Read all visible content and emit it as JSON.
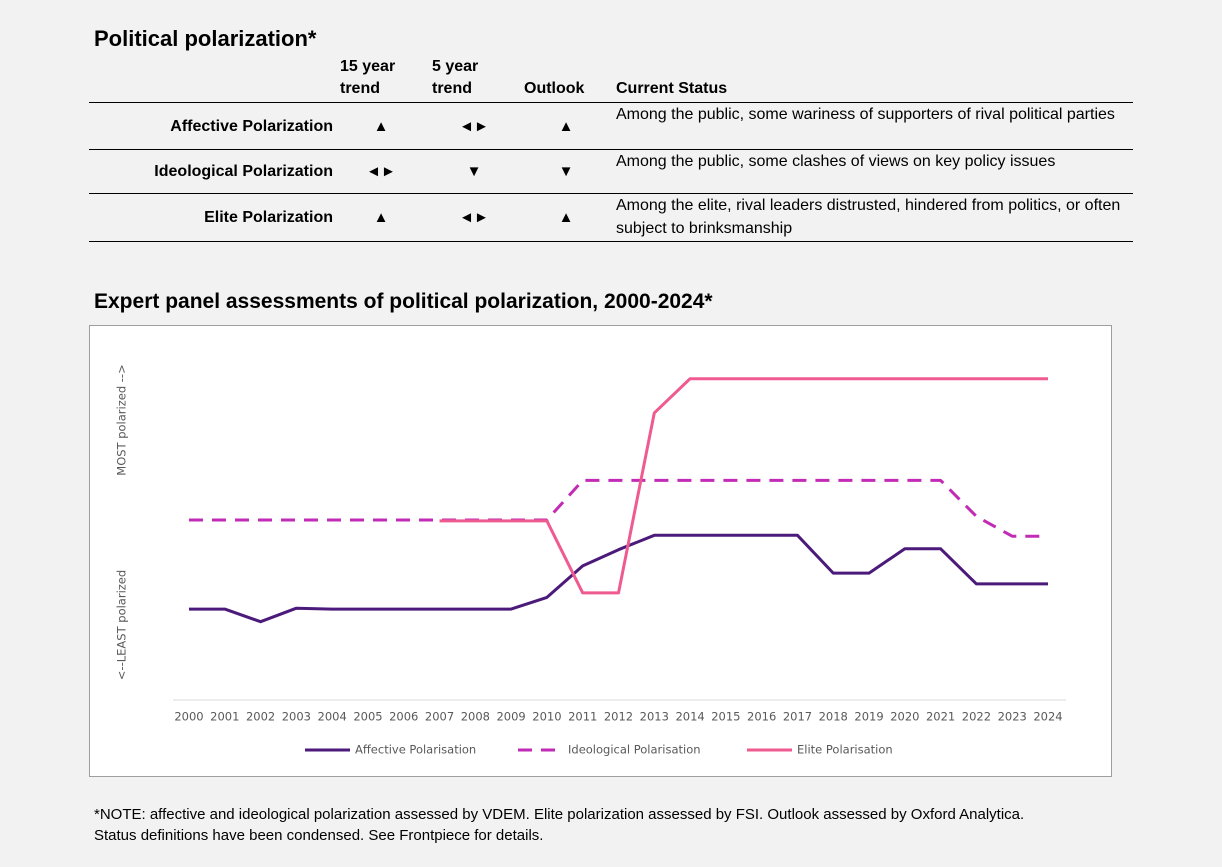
{
  "header": {
    "title": "Political polarization*"
  },
  "table": {
    "columns": [
      "15 year trend",
      "5 year trend",
      "Outlook",
      "Current Status"
    ],
    "rows": [
      {
        "label": "Affective Polarization",
        "cells": [
          "▲",
          "◄►",
          "▲",
          "Among the public, some wariness of supporters of rival political parties"
        ]
      },
      {
        "label": "Ideological Polarization",
        "cells": [
          "◄►",
          "▼",
          "▼",
          "Among the public, some clashes of views on key policy issues"
        ]
      },
      {
        "label": "Elite Polarization",
        "cells": [
          "▲",
          "◄►",
          "▲",
          "Among the elite, rival leaders distrusted, hindered from politics, or often subject to brinksmanship"
        ]
      }
    ]
  },
  "chart_data": {
    "type": "line",
    "title": "Expert panel assessments of political polarization, 2000-2024*",
    "y_label_top": "MOST polarized -->",
    "y_label_bottom": "<--LEAST polarized",
    "categories": [
      "2000",
      "2001",
      "2002",
      "2003",
      "2004",
      "2005",
      "2006",
      "2007",
      "2008",
      "2009",
      "2010",
      "2011",
      "2012",
      "2013",
      "2014",
      "2015",
      "2016",
      "2017",
      "2018",
      "2019",
      "2020",
      "2021",
      "2022",
      "2023",
      "2024"
    ],
    "ylim": [
      0,
      4
    ],
    "series": [
      {
        "name": "Affective Polarisation",
        "color": "#4b1a7a",
        "dash": false,
        "values": [
          1.01,
          1.01,
          0.87,
          1.02,
          1.01,
          1.01,
          1.01,
          1.01,
          1.01,
          1.01,
          1.14,
          1.49,
          1.67,
          1.83,
          1.83,
          1.83,
          1.83,
          1.83,
          1.41,
          1.41,
          1.68,
          1.68,
          1.29,
          1.29,
          1.29
        ]
      },
      {
        "name": "Ideological Polarisation",
        "color": "#c22bb5",
        "dash": true,
        "values": [
          2.0,
          2.0,
          2.0,
          2.0,
          2.0,
          2.0,
          2.0,
          2.0,
          2.0,
          2.0,
          2.0,
          2.44,
          2.44,
          2.44,
          2.44,
          2.44,
          2.44,
          2.44,
          2.44,
          2.44,
          2.44,
          2.44,
          2.04,
          1.82,
          1.82
        ]
      },
      {
        "name": "Elite Polarisation",
        "color": "#ef5b91",
        "dash": false,
        "values": [
          null,
          null,
          null,
          null,
          null,
          null,
          null,
          1.99,
          1.99,
          1.99,
          1.99,
          1.19,
          1.19,
          3.19,
          3.57,
          3.57,
          3.57,
          3.57,
          3.57,
          3.57,
          3.57,
          3.57,
          3.57,
          3.57,
          3.57
        ]
      }
    ]
  },
  "footnote": [
    "*NOTE: affective and ideological polarization assessed by VDEM. Elite polarization assessed by FSI. Outlook assessed by Oxford Analytica.",
    "Status definitions have been condensed. See Frontpiece for details."
  ]
}
